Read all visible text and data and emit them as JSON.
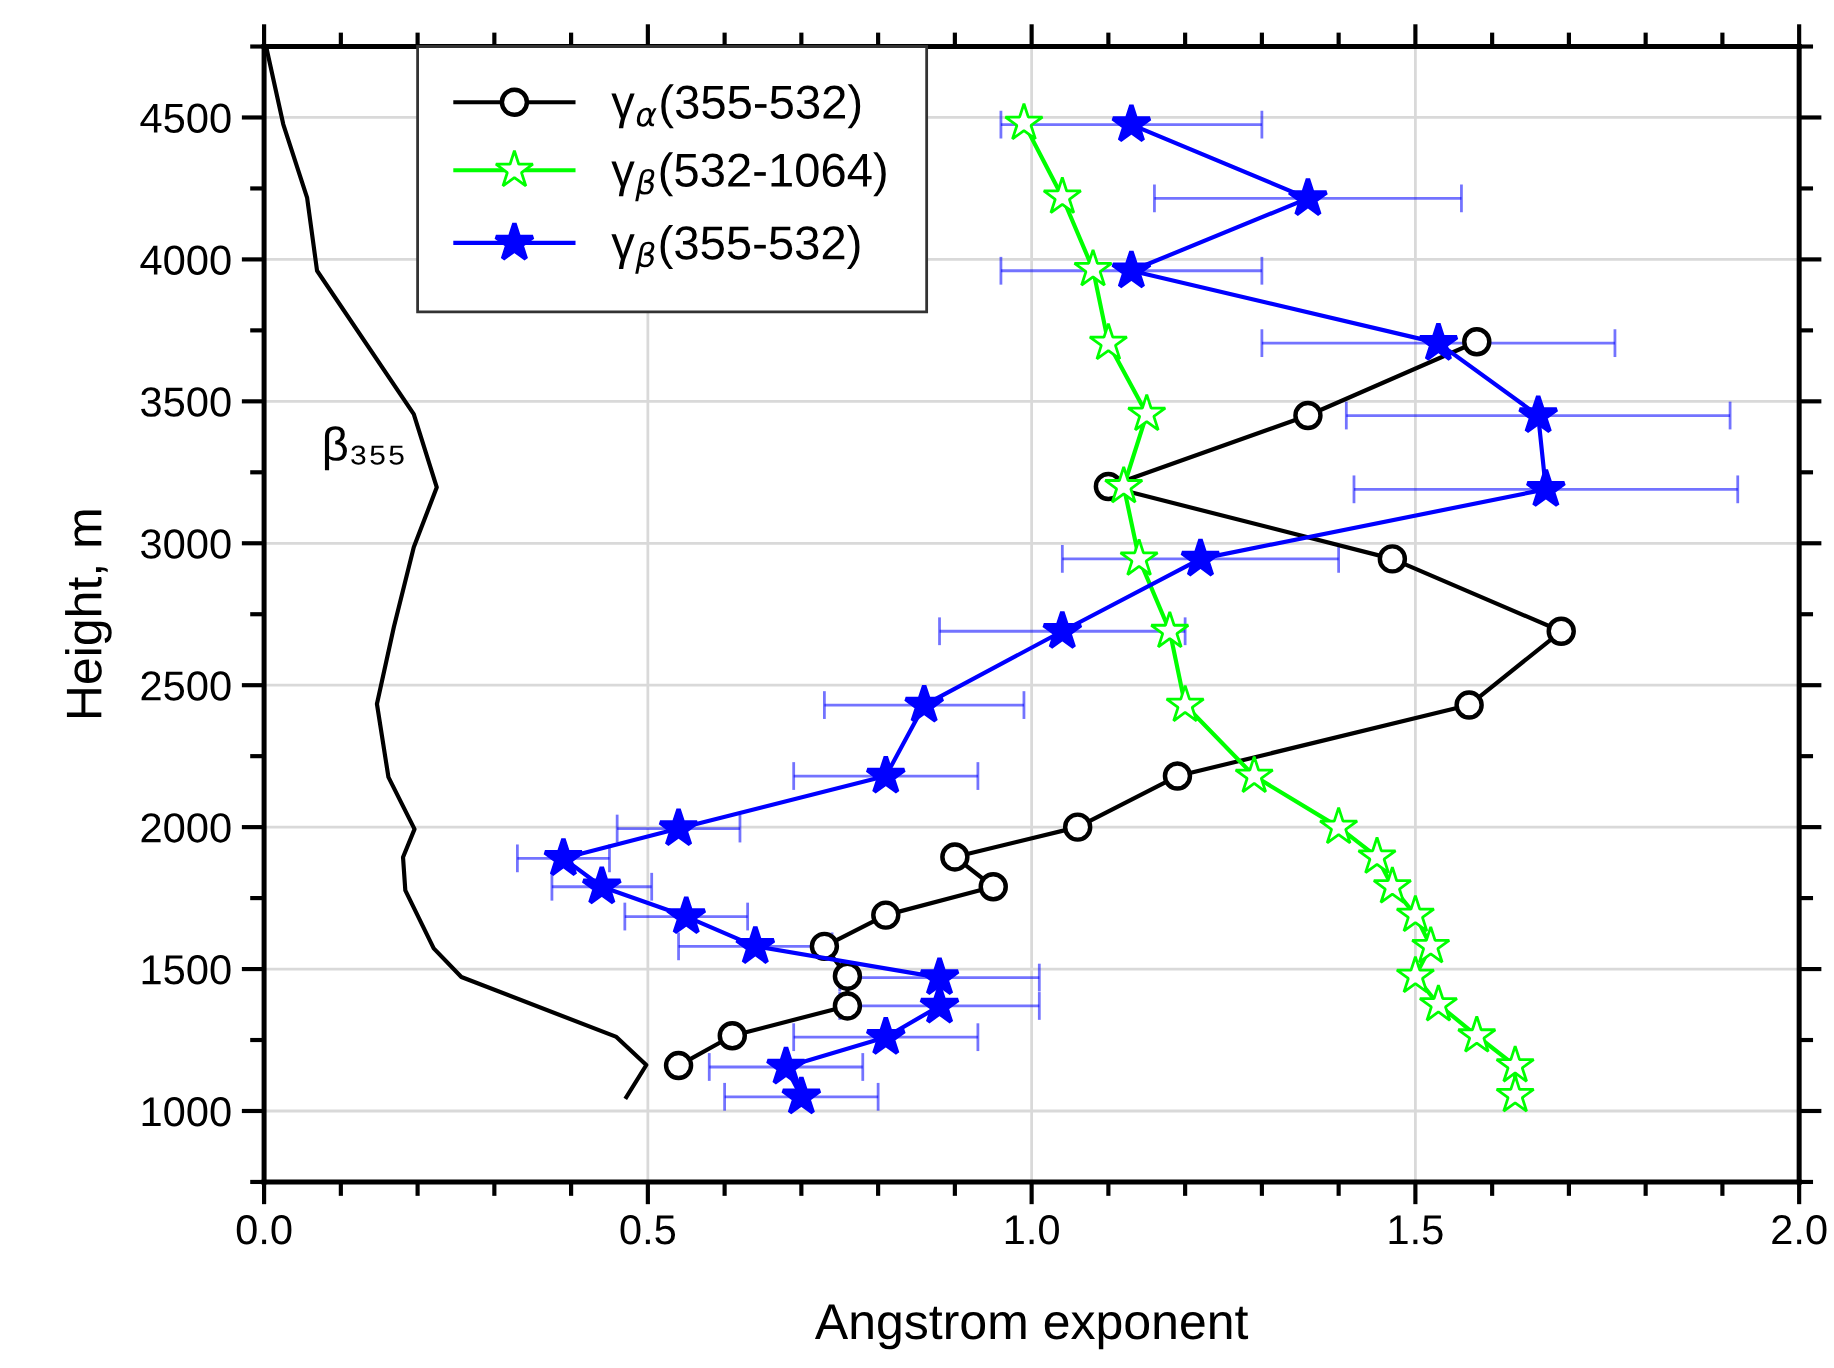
{
  "chart_data": {
    "type": "line",
    "xlabel": "Angstrom exponent",
    "ylabel": "Height, m",
    "xlim": [
      0.0,
      2.0
    ],
    "ylim": [
      750,
      4750
    ],
    "xticks": [
      {
        "value": 0.0,
        "label": "0.0"
      },
      {
        "value": 0.1,
        "label": null
      },
      {
        "value": 0.2,
        "label": null
      },
      {
        "value": 0.3,
        "label": null
      },
      {
        "value": 0.4,
        "label": null
      },
      0.5,
      {
        "value": 0.6,
        "label": null
      },
      {
        "value": 0.7,
        "label": null
      },
      {
        "value": 0.8,
        "label": null
      },
      {
        "value": 0.9,
        "label": null
      },
      {
        "value": 1.0,
        "label": "1.0"
      },
      {
        "value": 1.1,
        "label": null
      },
      {
        "value": 1.2,
        "label": null
      },
      {
        "value": 1.3,
        "label": null
      },
      {
        "value": 1.4,
        "label": null
      },
      1.5,
      {
        "value": 1.6,
        "label": null
      },
      {
        "value": 1.7,
        "label": null
      },
      {
        "value": 1.8,
        "label": null
      },
      {
        "value": 1.9,
        "label": null
      },
      {
        "value": 2.0,
        "label": "2.0"
      }
    ],
    "yticks": [
      {
        "value": 750,
        "label": null
      },
      1000,
      {
        "value": 1250,
        "label": null
      },
      1500,
      {
        "value": 1750,
        "label": null
      },
      2000,
      {
        "value": 2250,
        "label": null
      },
      2500,
      {
        "value": 2750,
        "label": null
      },
      3000,
      {
        "value": 3250,
        "label": null
      },
      3500,
      {
        "value": 3750,
        "label": null
      },
      4000,
      {
        "value": 4250,
        "label": null
      },
      4500,
      {
        "value": 4750,
        "label": null
      }
    ],
    "grid": true,
    "legend": "top left",
    "line_style": "solid",
    "series": [
      {
        "name": "γ$_{α}$(355-532)",
        "color": "#000000",
        "marker": "circle",
        "x": [
          1.58,
          1.36,
          1.1,
          1.47,
          1.69,
          1.57,
          1.19,
          1.06,
          0.9,
          0.95,
          0.81,
          0.73,
          0.76,
          0.76,
          0.61,
          0.54
        ],
        "values": [
          3710,
          3450,
          3200,
          2945,
          2690,
          2430,
          2180,
          2000,
          1895,
          1790,
          1690,
          1580,
          1475,
          1370,
          1265,
          1160
        ]
      },
      {
        "name": "γ$_{β}$(532-1064)",
        "color": "#00ff00",
        "marker": "star",
        "x": [
          0.99,
          1.04,
          1.08,
          1.1,
          1.15,
          1.12,
          1.14,
          1.18,
          1.2,
          1.29,
          1.4,
          1.45,
          1.47,
          1.5,
          1.52,
          1.5,
          1.53,
          1.58,
          1.63,
          1.63
        ],
        "values": [
          4480,
          4220,
          3965,
          3705,
          3455,
          3200,
          2945,
          2690,
          2430,
          2180,
          2000,
          1895,
          1790,
          1690,
          1580,
          1475,
          1375,
          1265,
          1160,
          1055
        ]
      },
      {
        "name": "γ$_{β}$(355-532)",
        "color": "#0000ff",
        "marker": "star",
        "x": [
          1.13,
          1.36,
          1.13,
          1.53,
          1.66,
          1.67,
          1.22,
          1.04,
          0.86,
          0.81,
          0.54,
          0.39,
          0.44,
          0.55,
          0.64,
          0.88,
          0.88,
          0.81,
          0.68,
          0.7
        ],
        "values": [
          4475,
          4215,
          3960,
          3705,
          3450,
          3190,
          2945,
          2690,
          2430,
          2180,
          1995,
          1890,
          1790,
          1685,
          1580,
          1470,
          1370,
          1260,
          1155,
          1050
        ],
        "xerrors": [
          0.17,
          0.2,
          0.17,
          0.23,
          0.25,
          0.25,
          0.18,
          0.16,
          0.13,
          0.12,
          0.08,
          0.06,
          0.065,
          0.08,
          0.1,
          0.13,
          0.13,
          0.12,
          0.1,
          0.1
        ]
      },
      {
        "name": "β₃₅₅",
        "color": "#000000",
        "marker": "none",
        "x": [
          0.003,
          0.025,
          0.056,
          0.069,
          0.195,
          0.225,
          0.195,
          0.169,
          0.147,
          0.162,
          0.196,
          0.181,
          0.184,
          0.221,
          0.257,
          0.459,
          0.498,
          0.472
        ],
        "values": [
          4746,
          4476,
          4218,
          3960,
          3455,
          3197,
          2986,
          2704,
          2434,
          2176,
          1993,
          1894,
          1777,
          1573,
          1472,
          1261,
          1162,
          1049
        ]
      }
    ]
  }
}
